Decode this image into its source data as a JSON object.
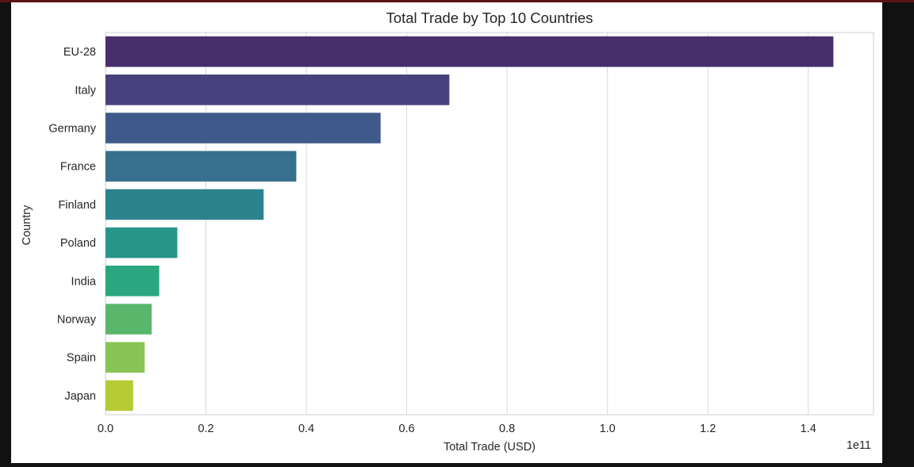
{
  "chart_data": {
    "type": "bar",
    "orientation": "horizontal",
    "title": "Total Trade by Top 10 Countries",
    "xlabel": "Total Trade (USD)",
    "ylabel": "Country",
    "x_offset_label": "1e11",
    "categories": [
      "EU-28",
      "Italy",
      "Germany",
      "France",
      "Finland",
      "Poland",
      "India",
      "Norway",
      "Spain",
      "Japan"
    ],
    "values": [
      1.45,
      0.685,
      0.548,
      0.38,
      0.315,
      0.143,
      0.107,
      0.092,
      0.078,
      0.055
    ],
    "value_scale": "1e11",
    "xlim": [
      0,
      1.53
    ],
    "xticks": [
      0.0,
      0.2,
      0.4,
      0.6,
      0.8,
      1.0,
      1.2,
      1.4
    ],
    "xtick_labels": [
      "0.0",
      "0.2",
      "0.4",
      "0.6",
      "0.8",
      "1.0",
      "1.2",
      "1.4"
    ],
    "grid": true,
    "legend": false,
    "colors": [
      "#472f6e",
      "#47417e",
      "#3f5a8a",
      "#36708c",
      "#2c828d",
      "#26958a",
      "#2ba77f",
      "#59b76c",
      "#88c455",
      "#b7cb34"
    ]
  }
}
